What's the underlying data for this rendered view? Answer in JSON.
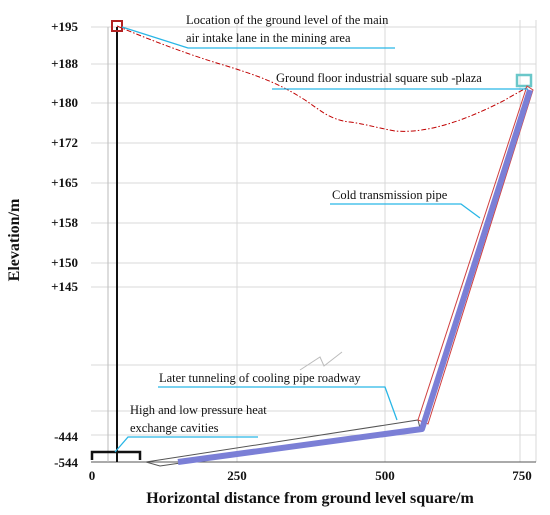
{
  "axes": {
    "xlabel": "Horizontal distance from ground level square/m",
    "ylabel": "Elevation/m",
    "x_ticks": [
      "0",
      "250",
      "500",
      "750"
    ],
    "y_ticks": [
      "+195",
      "+188",
      "+180",
      "+172",
      "+165",
      "+158",
      "+150",
      "+145",
      "-444",
      "-544"
    ]
  },
  "annotations": {
    "main_intake_line1": "Location of the ground level of the main",
    "main_intake_line2": "air intake lane in the mining area",
    "sub_plaza": "Ground floor industrial square sub -plaza",
    "cold_pipe": "Cold transmission pipe",
    "later_tunneling": "Later tunneling of cooling pipe roadway",
    "cavities_line1": "High and low pressure heat",
    "cavities_line2": "exchange cavities"
  },
  "colors": {
    "pipe": "#7b7fd6",
    "terrain": "#c00000",
    "leader": "#29b6e6",
    "plaza_box": "#6ac7c9",
    "intake_box": "#b22222",
    "grid": "#d9d9d9"
  }
}
